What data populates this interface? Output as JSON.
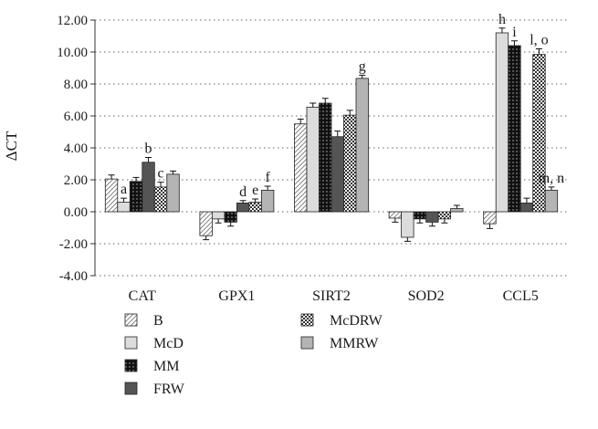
{
  "chart_data": {
    "type": "bar",
    "ylabel": "ΔCT",
    "ylim": [
      -4,
      12
    ],
    "yticks": [
      -4,
      -2,
      0,
      2,
      4,
      6,
      8,
      10,
      12
    ],
    "ytick_labels": [
      "-4.00",
      "-2.00",
      "0.00",
      "2.00",
      "4.00",
      "6.00",
      "8.00",
      "10.00",
      "12.00"
    ],
    "grid": "horizontal dotted",
    "categories": [
      "CAT",
      "GPX1",
      "SIRT2",
      "SOD2",
      "CCL5"
    ],
    "series": [
      {
        "name": "B",
        "pattern": "hatch",
        "values": [
          2.05,
          -1.5,
          5.5,
          -0.4,
          -0.75
        ],
        "errors": [
          0.25,
          0.25,
          0.3,
          0.25,
          0.3
        ]
      },
      {
        "name": "McD",
        "pattern": "light",
        "values": [
          0.6,
          -0.45,
          6.55,
          -1.6,
          11.2
        ],
        "errors": [
          0.25,
          0.25,
          0.25,
          0.25,
          0.3
        ]
      },
      {
        "name": "MM",
        "pattern": "dots-black",
        "values": [
          1.9,
          -0.65,
          6.8,
          -0.45,
          10.4
        ],
        "errors": [
          0.25,
          0.25,
          0.3,
          0.25,
          0.3
        ]
      },
      {
        "name": "FRW",
        "pattern": "dark",
        "values": [
          3.1,
          0.55,
          4.7,
          -0.65,
          0.55
        ],
        "errors": [
          0.3,
          0.15,
          0.35,
          0.25,
          0.3
        ]
      },
      {
        "name": "McDRW",
        "pattern": "checker",
        "values": [
          1.55,
          0.6,
          6.05,
          -0.45,
          9.85
        ],
        "errors": [
          0.3,
          0.2,
          0.3,
          0.25,
          0.35
        ]
      },
      {
        "name": "MMRW",
        "pattern": "mid",
        "values": [
          2.35,
          1.35,
          8.35,
          0.2,
          1.35
        ],
        "errors": [
          0.2,
          0.25,
          0.2,
          0.2,
          0.2
        ]
      }
    ],
    "annotations": [
      {
        "text": "a",
        "category": 0,
        "series": 1
      },
      {
        "text": "b",
        "category": 0,
        "series": 3
      },
      {
        "text": "c",
        "category": 0,
        "series": 4
      },
      {
        "text": "d",
        "category": 1,
        "series": 3
      },
      {
        "text": "e",
        "category": 1,
        "series": 4
      },
      {
        "text": "f",
        "category": 1,
        "series": 5
      },
      {
        "text": "g",
        "category": 2,
        "series": 5
      },
      {
        "text": "h",
        "category": 4,
        "series": 1
      },
      {
        "text": "i",
        "category": 4,
        "series": 2
      },
      {
        "text": "l, o",
        "category": 4,
        "series": 4
      },
      {
        "text": "m, n",
        "category": 4,
        "series": 5
      }
    ],
    "legend": {
      "placement": "bottom-left, two columns",
      "columns": [
        [
          "B",
          "McD",
          "MM",
          "FRW"
        ],
        [
          "McDRW",
          "MMRW"
        ]
      ]
    },
    "colors": {
      "light": "#dcdcdc",
      "mid": "#b4b4b4",
      "dark": "#555555",
      "black": "#111111",
      "hatch": "#777777"
    }
  }
}
